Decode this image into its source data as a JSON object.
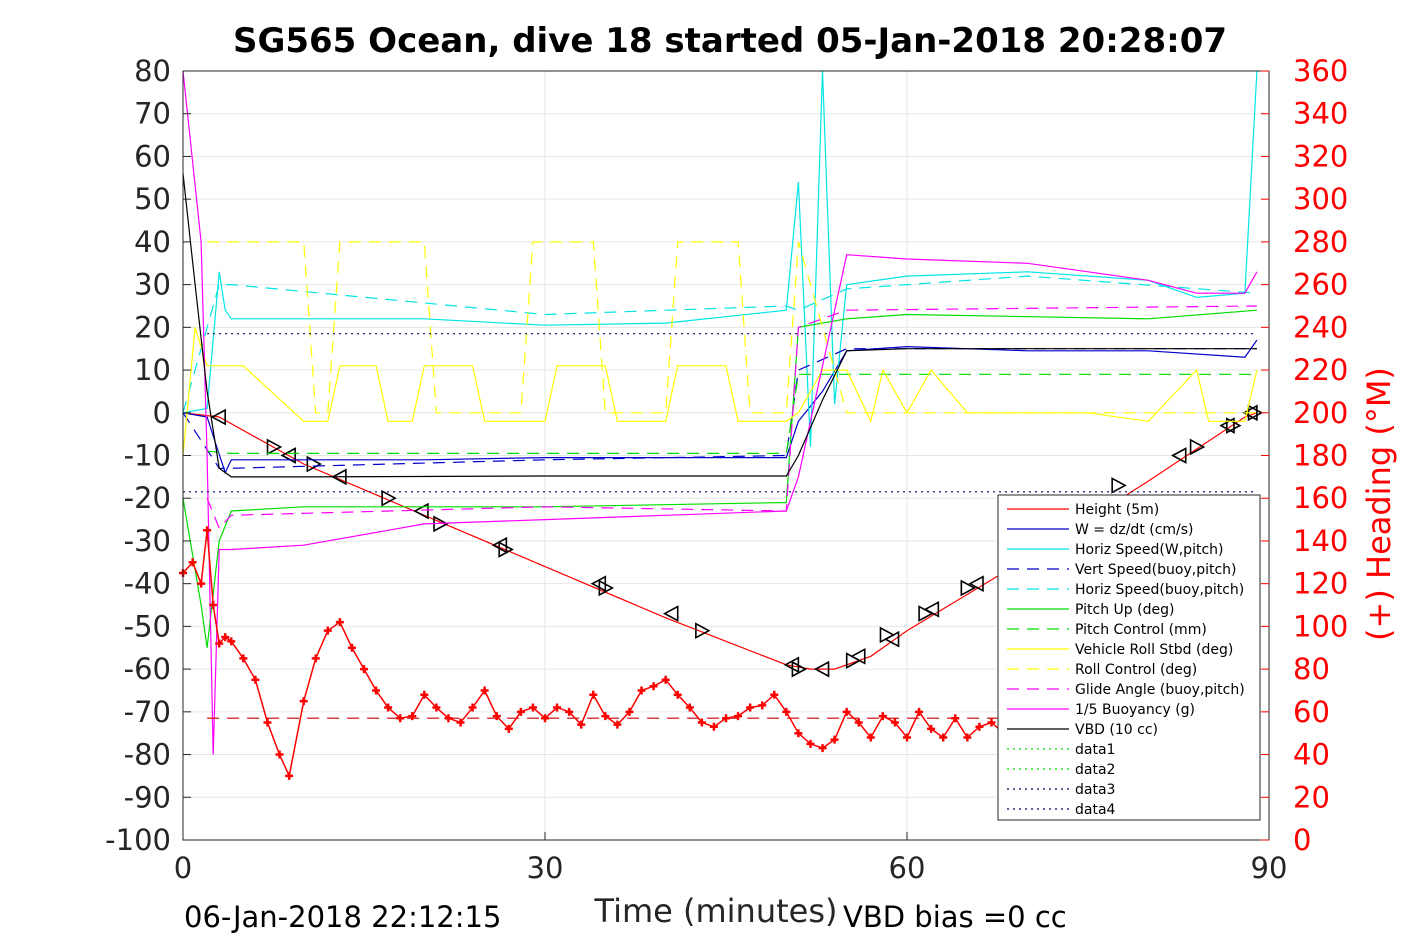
{
  "chart_data": {
    "type": "line",
    "title": "SG565 Ocean, dive 18 started 05-Jan-2018 20:28:07",
    "xlabel": "Time (minutes)",
    "ylabel_right": "(+) Heading (°M)",
    "xlim": [
      0,
      90
    ],
    "ylim_left": [
      -100,
      80
    ],
    "ylim_right": [
      0,
      360
    ],
    "x_ticks": [
      0,
      30,
      60,
      90
    ],
    "y_ticks_left": [
      80,
      70,
      60,
      50,
      40,
      30,
      20,
      10,
      0,
      -10,
      -20,
      -30,
      -40,
      -50,
      -60,
      -70,
      -80,
      -90,
      -100
    ],
    "y_ticks_right": [
      360,
      340,
      320,
      300,
      280,
      260,
      240,
      220,
      200,
      180,
      160,
      140,
      120,
      100,
      80,
      60,
      40,
      20,
      0
    ],
    "grid": true,
    "legend_position": "bottom-right",
    "footer_left": "06-Jan-2018 22:12:15",
    "footer_right": "VBD bias =0 cc",
    "legend": [
      {
        "label": "Height (5m)",
        "color": "#ff0000",
        "dash": "solid"
      },
      {
        "label": "W = dz/dt (cm/s)",
        "color": "#0000cc",
        "dash": "solid"
      },
      {
        "label": "Horiz Speed(W,pitch)",
        "color": "#00e5e5",
        "dash": "solid"
      },
      {
        "label": "Vert Speed(buoy,pitch)",
        "color": "#0000cc",
        "dash": "dashed"
      },
      {
        "label": "Horiz Speed(buoy,pitch)",
        "color": "#00e5e5",
        "dash": "dashed"
      },
      {
        "label": "Pitch Up (deg)",
        "color": "#00dd00",
        "dash": "solid"
      },
      {
        "label": "Pitch Control (mm)",
        "color": "#00dd00",
        "dash": "dashed"
      },
      {
        "label": "Vehicle Roll Stbd (deg)",
        "color": "#ffff00",
        "dash": "solid"
      },
      {
        "label": "Roll Control (deg)",
        "color": "#ffff00",
        "dash": "dashed"
      },
      {
        "label": "Glide Angle (buoy,pitch)",
        "color": "#ff00ff",
        "dash": "dashed"
      },
      {
        "label": "1/5 Buoyancy (g)",
        "color": "#ff00ff",
        "dash": "solid"
      },
      {
        "label": "VBD (10 cc)",
        "color": "#000000",
        "dash": "solid"
      },
      {
        "label": "data1",
        "color": "#00dd00",
        "dash": "dotted"
      },
      {
        "label": "data2",
        "color": "#00dd00",
        "dash": "dotted"
      },
      {
        "label": "data3",
        "color": "#000066",
        "dash": "dotted"
      },
      {
        "label": "data4",
        "color": "#000066",
        "dash": "dotted"
      }
    ],
    "series": [
      {
        "name": "Height (5m)",
        "axis": "left",
        "color": "#ff0000",
        "dash": "solid",
        "x": [
          0,
          3,
          10,
          20,
          30,
          40,
          50,
          52,
          54,
          57,
          60,
          70,
          80,
          88,
          89
        ],
        "y": [
          0,
          -1,
          -12,
          -24,
          -36,
          -48,
          -59,
          -60,
          -60,
          -57,
          -51,
          -34,
          -16,
          -1,
          0
        ]
      },
      {
        "name": "Height markers",
        "axis": "left",
        "color": "#000000",
        "marker": "triangle",
        "line": false,
        "x": [
          3,
          7.5,
          8.8,
          10.8,
          13,
          17,
          19.8,
          21.3,
          26.3,
          26.7,
          34.5,
          35,
          40.5,
          43,
          50.5,
          51,
          53,
          55.5,
          56,
          58.3,
          58.8,
          61.5,
          62.1,
          65,
          65.8,
          77.5,
          82.6,
          84,
          86.6,
          87,
          88.5,
          88.8
        ],
        "y": [
          -1,
          -8,
          -10,
          -12,
          -15,
          -20,
          -23,
          -26,
          -31,
          -32,
          -40,
          -41,
          -47,
          -51,
          -59,
          -60,
          -60,
          -58,
          -57,
          -52,
          -53,
          -47,
          -46,
          -41,
          -40,
          -17,
          -10,
          -8,
          -3,
          -3,
          0,
          0
        ]
      },
      {
        "name": "W = dz/dt (cm/s)",
        "axis": "left",
        "color": "#0000cc",
        "dash": "solid",
        "x": [
          0,
          2,
          2.8,
          3.5,
          4,
          10,
          20,
          30,
          40,
          50,
          51,
          53,
          55,
          60,
          70,
          80,
          88,
          89
        ],
        "y": [
          0,
          -1,
          -8,
          -14,
          -11,
          -11,
          -11,
          -10.5,
          -10.5,
          -10.5,
          -2,
          5,
          14.5,
          15.5,
          14.5,
          14.5,
          13,
          17
        ]
      },
      {
        "name": "Horiz Speed(W,pitch)",
        "axis": "left",
        "color": "#00e5e5",
        "dash": "solid",
        "x": [
          0,
          2,
          3,
          3.5,
          4,
          10,
          20,
          30,
          40,
          50,
          51,
          52,
          53,
          54,
          55,
          60,
          70,
          80,
          84,
          88,
          89
        ],
        "y": [
          0,
          1,
          33,
          24,
          22,
          22,
          22,
          20.5,
          21,
          24,
          54,
          -8,
          80,
          2,
          30,
          32,
          33,
          31,
          27,
          28,
          80
        ]
      },
      {
        "name": "Vert Speed(buoy,pitch)",
        "axis": "left",
        "color": "#0000cc",
        "dash": "dashed",
        "x": [
          0,
          3,
          4,
          30,
          50,
          51,
          55,
          89
        ],
        "y": [
          0,
          -13,
          -13,
          -11,
          -10,
          10,
          15,
          15
        ]
      },
      {
        "name": "Horiz Speed(buoy,pitch)",
        "axis": "left",
        "color": "#00e5e5",
        "dash": "dashed",
        "x": [
          0,
          3,
          4,
          30,
          50,
          51,
          55,
          70,
          89
        ],
        "y": [
          0,
          30,
          30,
          23,
          25,
          24,
          29,
          32,
          28
        ]
      },
      {
        "name": "Pitch Up (deg)",
        "axis": "left",
        "color": "#00dd00",
        "dash": "solid",
        "x": [
          0,
          1.5,
          2,
          3,
          4,
          10,
          30,
          50,
          51,
          55,
          60,
          80,
          89
        ],
        "y": [
          -20,
          -45,
          -55,
          -30,
          -23,
          -22,
          -22,
          -21,
          20,
          22,
          23,
          22,
          24
        ]
      },
      {
        "name": "Pitch Control (mm)",
        "axis": "left",
        "color": "#00dd00",
        "dash": "dashed",
        "x": [
          2,
          4,
          50,
          51,
          89
        ],
        "y": [
          -9,
          -9.5,
          -9.5,
          9,
          9
        ]
      },
      {
        "name": "Vehicle Roll Stbd (deg)",
        "axis": "left",
        "color": "#ffff00",
        "dash": "solid",
        "x": [
          0,
          1,
          2,
          3,
          5,
          10,
          12,
          13,
          16,
          17,
          19,
          20,
          24,
          25,
          30,
          31,
          35,
          36,
          40,
          41,
          45,
          46,
          50,
          51,
          53,
          55,
          57,
          58,
          60,
          62,
          65,
          70,
          75,
          80,
          84,
          85,
          88,
          89
        ],
        "y": [
          -10,
          20,
          11,
          11,
          11,
          -2,
          -2,
          11,
          11,
          -2,
          -2,
          11,
          11,
          -2,
          -2,
          11,
          11,
          -2,
          -2,
          11,
          11,
          -2,
          -2,
          0,
          10,
          10,
          -2,
          10,
          0,
          10,
          0,
          0,
          0,
          -2,
          10,
          -2,
          -2,
          10
        ]
      },
      {
        "name": "Roll Control (deg)",
        "axis": "left",
        "color": "#ffff00",
        "dash": "dashed",
        "x": [
          2,
          3,
          5,
          10,
          11,
          12,
          13,
          20,
          21,
          28,
          29,
          34,
          35,
          40,
          41,
          46,
          47,
          50,
          51,
          55,
          89
        ],
        "y": [
          40,
          40,
          40,
          40,
          0,
          0,
          40,
          40,
          0,
          0,
          40,
          40,
          0,
          0,
          40,
          40,
          0,
          0,
          40,
          0,
          0
        ]
      },
      {
        "name": "Glide Angle (buoy,pitch)",
        "axis": "left",
        "color": "#ff00ff",
        "dash": "dashed",
        "x": [
          2,
          3,
          4,
          30,
          50,
          51,
          55,
          89
        ],
        "y": [
          -20,
          -27,
          -24,
          -22,
          -23,
          20,
          24,
          25
        ]
      },
      {
        "name": "1/5 Buoyancy (g)",
        "axis": "left",
        "color": "#ff00ff",
        "dash": "solid",
        "x": [
          0,
          1.5,
          2,
          2.5,
          3,
          4,
          10,
          20,
          30,
          40,
          50,
          51,
          55,
          60,
          70,
          80,
          84,
          88,
          89
        ],
        "y": [
          80,
          40,
          -10,
          -80,
          -32,
          -32,
          -31,
          -26,
          -25,
          -24,
          -23,
          -15,
          37,
          36,
          35,
          31,
          28,
          28,
          33
        ]
      },
      {
        "name": "VBD (10 cc)",
        "axis": "left",
        "color": "#000000",
        "dash": "solid",
        "x": [
          0,
          1,
          2,
          3,
          4,
          10,
          30,
          50,
          51,
          53,
          55,
          60,
          89
        ],
        "y": [
          56,
          30,
          5,
          -13,
          -15,
          -15,
          -14.8,
          -14.8,
          -10,
          3,
          14.5,
          15,
          15
        ]
      },
      {
        "name": "data3",
        "axis": "left",
        "color": "#000066",
        "dash": "dotted",
        "x": [
          2,
          89
        ],
        "y": [
          18.5,
          18.5
        ]
      },
      {
        "name": "data4",
        "axis": "left",
        "color": "#000066",
        "dash": "dotted",
        "x": [
          0,
          89
        ],
        "y": [
          -18.5,
          -18.5
        ]
      },
      {
        "name": "Heading reference",
        "axis": "right",
        "color": "#cc0000",
        "dash": "dashed",
        "x": [
          2,
          89
        ],
        "y": [
          57,
          57
        ]
      },
      {
        "name": "Heading",
        "axis": "right",
        "color": "#ff0000",
        "marker": "plus",
        "line": true,
        "x": [
          0,
          0.8,
          1.5,
          2,
          2.5,
          3,
          3.5,
          4,
          5,
          6,
          7,
          8,
          8.8,
          10,
          11,
          12,
          13,
          14,
          15,
          16,
          17,
          18,
          19,
          20,
          21,
          22,
          23,
          24,
          25,
          26,
          27,
          28,
          29,
          30,
          31,
          32,
          33,
          34,
          35,
          36,
          37,
          38,
          39,
          40,
          41,
          42,
          43,
          44,
          45,
          46,
          47,
          48,
          49,
          50,
          51,
          52,
          53,
          54,
          55,
          56,
          57,
          58,
          59,
          60,
          61,
          62,
          63,
          64,
          65,
          66,
          67,
          68,
          69,
          70,
          71,
          72,
          73,
          74,
          75,
          76,
          77,
          78,
          79,
          80,
          81,
          82,
          83,
          84,
          85,
          86,
          87,
          88,
          88.5
        ],
        "y": [
          125,
          130,
          120,
          145,
          110,
          92,
          95,
          93,
          85,
          75,
          55,
          40,
          30,
          65,
          85,
          98,
          102,
          90,
          80,
          70,
          62,
          57,
          58,
          68,
          62,
          57,
          55,
          62,
          70,
          58,
          52,
          60,
          62,
          57,
          62,
          60,
          54,
          68,
          58,
          54,
          60,
          70,
          72,
          75,
          68,
          62,
          55,
          53,
          57,
          58,
          62,
          63,
          68,
          60,
          50,
          45,
          43,
          47,
          60,
          55,
          48,
          58,
          55,
          48,
          60,
          52,
          48,
          57,
          48,
          53,
          55,
          50,
          52,
          55,
          51,
          56,
          52,
          56,
          50,
          54,
          52,
          55,
          51,
          53,
          52,
          54,
          52,
          50,
          52,
          48,
          52,
          49,
          52
        ]
      }
    ]
  }
}
